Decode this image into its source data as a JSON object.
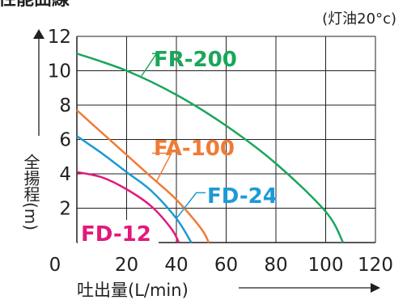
{
  "chart_data": {
    "type": "line",
    "title": "性能曲線",
    "condition_note": "(灯油20°c)",
    "xlabel": "吐出量(L/min)",
    "ylabel": "全揚程(m)",
    "x_ticks": [
      0,
      20,
      40,
      60,
      80,
      100,
      120
    ],
    "y_ticks": [
      2,
      4,
      6,
      8,
      10,
      12
    ],
    "xlim": [
      0,
      120
    ],
    "ylim": [
      0,
      12
    ],
    "grid": true,
    "series": [
      {
        "name": "FR-200",
        "color": "#19a65a",
        "points": [
          [
            0,
            11
          ],
          [
            20,
            10
          ],
          [
            40,
            8.6
          ],
          [
            60,
            6.8
          ],
          [
            80,
            4.6
          ],
          [
            100,
            1.8
          ],
          [
            107,
            0
          ]
        ]
      },
      {
        "name": "FA-100",
        "color": "#f07b35",
        "points": [
          [
            0,
            7.7
          ],
          [
            10,
            6.4
          ],
          [
            20,
            5.1
          ],
          [
            30,
            3.8
          ],
          [
            40,
            2.5
          ],
          [
            50,
            0.8
          ],
          [
            53,
            0
          ]
        ]
      },
      {
        "name": "FD-24",
        "color": "#1c9ad6",
        "points": [
          [
            0,
            6.2
          ],
          [
            10,
            5.2
          ],
          [
            20,
            4.1
          ],
          [
            30,
            3.0
          ],
          [
            40,
            1.4
          ],
          [
            46,
            0
          ]
        ]
      },
      {
        "name": "FD-12",
        "color": "#e2197a",
        "points": [
          [
            0,
            4.1
          ],
          [
            10,
            3.8
          ],
          [
            20,
            3.1
          ],
          [
            30,
            2.1
          ],
          [
            38,
            0.8
          ],
          [
            41,
            0
          ]
        ]
      }
    ]
  }
}
